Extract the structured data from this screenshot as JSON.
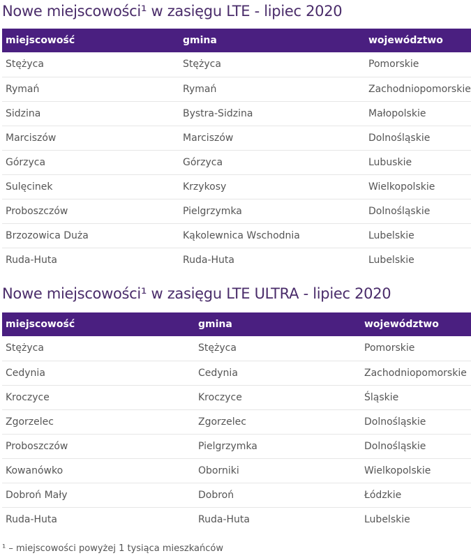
{
  "lte": {
    "title": "Nowe miejscowości¹ w zasięgu LTE - lipiec 2020",
    "headers": [
      "miejscowość",
      "gmina",
      "województwo"
    ],
    "rows": [
      [
        "Stężyca",
        "Stężyca",
        "Pomorskie"
      ],
      [
        "Rymań",
        "Rymań",
        "Zachodniopomorskie"
      ],
      [
        "Sidzina",
        "Bystra-Sidzina",
        "Małopolskie"
      ],
      [
        "Marciszów",
        "Marciszów",
        "Dolnośląskie"
      ],
      [
        "Górzyca",
        "Górzyca",
        "Lubuskie"
      ],
      [
        "Sulęcinek",
        "Krzykosy",
        "Wielkopolskie"
      ],
      [
        "Proboszczów",
        "Pielgrzymka",
        "Dolnośląskie"
      ],
      [
        "Brzozowica Duża",
        "Kąkolewnica Wschodnia",
        "Lubelskie"
      ],
      [
        "Ruda-Huta",
        "Ruda-Huta",
        "Lubelskie"
      ]
    ]
  },
  "lte_ultra": {
    "title": "Nowe miejscowości¹ w zasięgu LTE ULTRA - lipiec 2020",
    "headers": [
      "miejscowość",
      "gmina",
      "województwo"
    ],
    "rows": [
      [
        "Stężyca",
        "Stężyca",
        "Pomorskie"
      ],
      [
        "Cedynia",
        "Cedynia",
        "Zachodniopomorskie"
      ],
      [
        "Kroczyce",
        "Kroczyce",
        "Śląskie"
      ],
      [
        "Zgorzelec",
        "Zgorzelec",
        "Dolnośląskie"
      ],
      [
        "Proboszczów",
        "Pielgrzymka",
        "Dolnośląskie"
      ],
      [
        "Kowanówko",
        "Oborniki",
        "Wielkopolskie"
      ],
      [
        "Dobroń Mały",
        "Dobroń",
        "Łódzkie"
      ],
      [
        "Ruda-Huta",
        "Ruda-Huta",
        "Lubelskie"
      ]
    ]
  },
  "footnote": "¹ – miejscowości powyżej 1 tysiąca mieszkańców",
  "colors": {
    "header_bg": "#4a1f80",
    "title": "#4a2c6a",
    "text": "#555555"
  }
}
